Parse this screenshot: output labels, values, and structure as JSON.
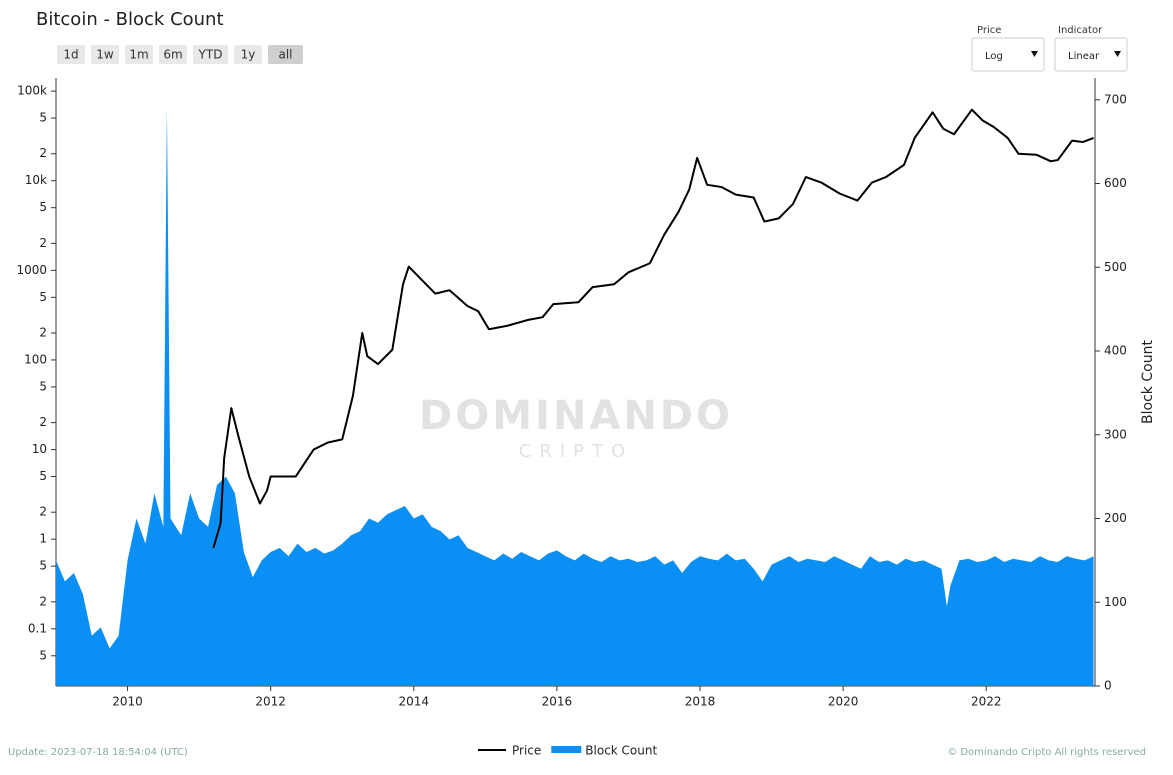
{
  "header": {
    "title": "Bitcoin - Block Count",
    "buttons": [
      "1d",
      "1w",
      "1m",
      "6m",
      "YTD",
      "1y",
      "all"
    ]
  },
  "controls": {
    "price_label": "Price",
    "price_value": "Log",
    "indicator_label": "Indicator",
    "indicator_value": "Linear"
  },
  "watermark": {
    "line1": "DOMINANDO",
    "line2": "CRIPTO"
  },
  "footer": {
    "update": "Update: 2023-07-18 18:54:04 (UTC)",
    "copyright": "© Dominando Cripto All rights reserved"
  },
  "chart_data": {
    "type": "line-area",
    "y2label": "Block Count",
    "log_y": true,
    "xlim": [
      2009.0,
      2023.52
    ],
    "xticks": [
      2010,
      2012,
      2014,
      2016,
      2018,
      2020,
      2022
    ],
    "ylim": [
      0.023,
      140000
    ],
    "yticks": [
      {
        "value": 100000,
        "label": "100k"
      },
      {
        "value": 50000,
        "label": "5"
      },
      {
        "value": 20000,
        "label": "2"
      },
      {
        "value": 10000,
        "label": "10k"
      },
      {
        "value": 5000,
        "label": "5"
      },
      {
        "value": 2000,
        "label": "2"
      },
      1000,
      {
        "value": 500,
        "label": "5"
      },
      {
        "value": 200,
        "label": "2"
      },
      100,
      {
        "value": 50,
        "label": "5"
      },
      {
        "value": 20,
        "label": "2"
      },
      10,
      5,
      2,
      1,
      {
        "value": 0.5,
        "label": "5"
      },
      {
        "value": 0.2,
        "label": "2"
      },
      0.1,
      {
        "value": 0.05,
        "label": "5"
      }
    ],
    "y2lim": [
      0,
      726
    ],
    "y2ticks": [
      0,
      100,
      200,
      300,
      400,
      500,
      600,
      700
    ],
    "series": [
      {
        "name": "Block Count",
        "color": "#0a8ff5",
        "axis": "y2",
        "kind": "area",
        "x": [
          2009.0,
          2009.125,
          2009.25,
          2009.375,
          2009.5,
          2009.625,
          2009.75,
          2009.875,
          2010.0,
          2010.125,
          2010.25,
          2010.375,
          2010.5,
          2010.55,
          2010.6,
          2010.75,
          2010.875,
          2011.0,
          2011.125,
          2011.25,
          2011.375,
          2011.5,
          2011.625,
          2011.75,
          2011.875,
          2012.0,
          2012.125,
          2012.25,
          2012.375,
          2012.5,
          2012.625,
          2012.75,
          2012.875,
          2013.0,
          2013.125,
          2013.25,
          2013.375,
          2013.5,
          2013.625,
          2013.75,
          2013.875,
          2014.0,
          2014.125,
          2014.25,
          2014.375,
          2014.5,
          2014.625,
          2014.75,
          2014.875,
          2015.0,
          2015.125,
          2015.25,
          2015.375,
          2015.5,
          2015.625,
          2015.75,
          2015.875,
          2016.0,
          2016.125,
          2016.25,
          2016.375,
          2016.5,
          2016.625,
          2016.75,
          2016.875,
          2017.0,
          2017.125,
          2017.25,
          2017.375,
          2017.5,
          2017.625,
          2017.75,
          2017.875,
          2018.0,
          2018.125,
          2018.25,
          2018.375,
          2018.5,
          2018.625,
          2018.75,
          2018.875,
          2019.0,
          2019.125,
          2019.25,
          2019.375,
          2019.5,
          2019.625,
          2019.75,
          2019.875,
          2020.0,
          2020.125,
          2020.25,
          2020.375,
          2020.5,
          2020.625,
          2020.75,
          2020.875,
          2021.0,
          2021.125,
          2021.25,
          2021.375,
          2021.45,
          2021.5,
          2021.625,
          2021.75,
          2021.875,
          2022.0,
          2022.125,
          2022.25,
          2022.375,
          2022.5,
          2022.625,
          2022.75,
          2022.875,
          2023.0,
          2023.125,
          2023.25,
          2023.375,
          2023.5
        ],
        "values": [
          150,
          125,
          135,
          110,
          60,
          70,
          45,
          60,
          150,
          200,
          170,
          230,
          190,
          690,
          200,
          180,
          230,
          200,
          190,
          240,
          250,
          230,
          160,
          130,
          150,
          160,
          165,
          155,
          170,
          160,
          165,
          158,
          162,
          170,
          180,
          185,
          200,
          195,
          205,
          210,
          215,
          200,
          205,
          190,
          185,
          175,
          180,
          165,
          160,
          155,
          150,
          158,
          152,
          160,
          155,
          150,
          158,
          162,
          155,
          150,
          158,
          152,
          148,
          155,
          150,
          152,
          148,
          150,
          155,
          145,
          150,
          135,
          148,
          155,
          152,
          150,
          158,
          150,
          152,
          140,
          125,
          145,
          150,
          155,
          148,
          152,
          150,
          148,
          155,
          150,
          145,
          140,
          155,
          148,
          150,
          145,
          152,
          148,
          150,
          145,
          140,
          95,
          120,
          150,
          152,
          148,
          150,
          155,
          148,
          152,
          150,
          148,
          155,
          150,
          148,
          155,
          152,
          150,
          155
        ]
      },
      {
        "name": "Price",
        "color": "#000000",
        "axis": "y",
        "kind": "line",
        "x": [
          2011.2,
          2011.3,
          2011.35,
          2011.45,
          2011.55,
          2011.7,
          2011.85,
          2011.95,
          2012.0,
          2012.15,
          2012.35,
          2012.6,
          2012.8,
          2013.0,
          2013.15,
          2013.28,
          2013.35,
          2013.5,
          2013.7,
          2013.85,
          2013.93,
          2014.1,
          2014.3,
          2014.5,
          2014.75,
          2014.9,
          2015.05,
          2015.3,
          2015.6,
          2015.8,
          2015.95,
          2016.3,
          2016.5,
          2016.8,
          2017.0,
          2017.3,
          2017.5,
          2017.7,
          2017.85,
          2017.96,
          2018.1,
          2018.3,
          2018.5,
          2018.75,
          2018.9,
          2019.1,
          2019.3,
          2019.48,
          2019.7,
          2019.95,
          2020.2,
          2020.4,
          2020.6,
          2020.85,
          2021.0,
          2021.25,
          2021.4,
          2021.55,
          2021.8,
          2021.95,
          2022.1,
          2022.3,
          2022.45,
          2022.7,
          2022.9,
          2023.0,
          2023.2,
          2023.35,
          2023.5
        ],
        "values": [
          0.8,
          1.5,
          8,
          29,
          14,
          5,
          2.5,
          3.5,
          5,
          5,
          5,
          10,
          12,
          13,
          40,
          200,
          110,
          90,
          130,
          700,
          1100,
          800,
          550,
          600,
          400,
          350,
          220,
          240,
          280,
          300,
          420,
          440,
          650,
          700,
          950,
          1200,
          2500,
          4500,
          8000,
          18000,
          9000,
          8500,
          7000,
          6500,
          3500,
          3800,
          5500,
          11000,
          9500,
          7200,
          6000,
          9500,
          11000,
          15000,
          30000,
          58000,
          38000,
          33000,
          62000,
          47000,
          40000,
          30000,
          20000,
          19500,
          16500,
          17000,
          28000,
          27000,
          30000
        ]
      }
    ]
  }
}
